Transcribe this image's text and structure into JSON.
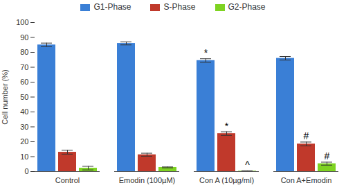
{
  "chart_data": {
    "type": "bar",
    "categories": [
      "Control",
      "Emodin (100µM)",
      "Con A (10µg/ml)",
      "Con A+Emodin"
    ],
    "series": [
      {
        "name": "G1-Phase",
        "color": "#3a7fd6",
        "values": [
          85,
          86,
          74.5,
          76
        ],
        "errors": [
          1.2,
          1,
          1.2,
          1.2
        ]
      },
      {
        "name": "S-Phase",
        "color": "#c0392b",
        "values": [
          13,
          11.3,
          25.5,
          18.5
        ],
        "errors": [
          1.3,
          1,
          1.2,
          1.3
        ]
      },
      {
        "name": "G2-Phase",
        "color": "#7ed321",
        "values": [
          2.3,
          2.8,
          0.3,
          5.3
        ],
        "errors": [
          1.2,
          0.3,
          0.2,
          1
        ]
      }
    ],
    "y_label": "Cell number (%)",
    "ylim": [
      0,
      100
    ],
    "yticks": [
      0,
      10,
      20,
      30,
      40,
      50,
      60,
      70,
      80,
      90,
      100
    ],
    "grid": false,
    "legend": "top",
    "annotations": [
      {
        "category": "Con A (10µg/ml)",
        "series": "G1-Phase",
        "text": "*"
      },
      {
        "category": "Con A (10µg/ml)",
        "series": "S-Phase",
        "text": "*"
      },
      {
        "category": "Con A (10µg/ml)",
        "series": "G2-Phase",
        "text": "^"
      },
      {
        "category": "Con A+Emodin",
        "series": "S-Phase",
        "text": "#"
      },
      {
        "category": "Con A+Emodin",
        "series": "G2-Phase",
        "text": "#"
      }
    ]
  }
}
